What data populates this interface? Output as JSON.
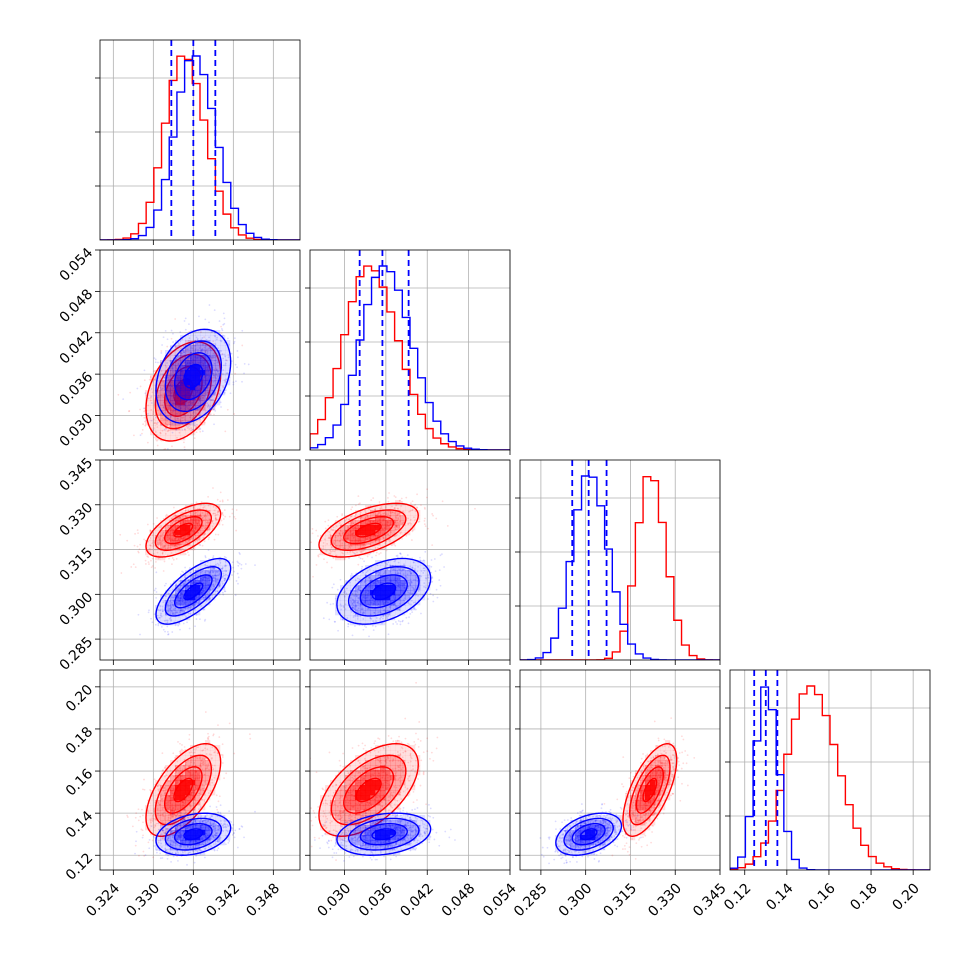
{
  "chart_data": {
    "type": "corner",
    "colors": {
      "series_a": "#ff0000",
      "series_b": "#0000ff"
    },
    "dimensions": [
      {
        "range": [
          0.322,
          0.352
        ],
        "ticks": [
          "0.324",
          "0.330",
          "0.336",
          "0.342",
          "0.348"
        ]
      },
      {
        "range": [
          0.025,
          0.054
        ],
        "ticks": [
          "0.030",
          "0.036",
          "0.042",
          "0.048",
          "0.054"
        ]
      },
      {
        "range": [
          0.278,
          0.345
        ],
        "ticks": [
          "0.285",
          "0.300",
          "0.315",
          "0.330",
          "0.345"
        ]
      },
      {
        "range": [
          0.113,
          0.208
        ],
        "ticks": [
          "0.12",
          "0.14",
          "0.16",
          "0.18",
          "0.20"
        ]
      }
    ],
    "grid": true,
    "series": [
      {
        "color": "#ff0000",
        "means": [
          0.3345,
          0.0335,
          0.3215,
          0.151
        ],
        "sds": [
          0.0028,
          0.0036,
          0.0045,
          0.011
        ],
        "corr": [
          [
            1,
            0.35,
            0.6,
            0.6
          ],
          [
            0.35,
            1,
            0.55,
            0.55
          ],
          [
            0.6,
            0.55,
            1,
            0.65
          ],
          [
            0.6,
            0.55,
            0.65,
            1
          ]
        ]
      },
      {
        "color": "#0000ff",
        "means": [
          0.336,
          0.0357,
          0.301,
          0.13
        ],
        "sds": [
          0.0028,
          0.0034,
          0.0055,
          0.005
        ],
        "corr": [
          [
            1,
            0.3,
            0.7,
            0.3
          ],
          [
            0.3,
            1,
            0.4,
            0.25
          ],
          [
            0.7,
            0.4,
            1,
            0.4
          ],
          [
            0.3,
            0.25,
            0.4,
            1
          ]
        ]
      }
    ],
    "quantiles": {
      "color": "#0000ff",
      "values": [
        [
          0.3327,
          0.336,
          0.3393
        ],
        [
          0.0322,
          0.0355,
          0.0393
        ],
        [
          0.2955,
          0.301,
          0.307
        ],
        [
          0.1245,
          0.13,
          0.1355
        ]
      ]
    }
  }
}
